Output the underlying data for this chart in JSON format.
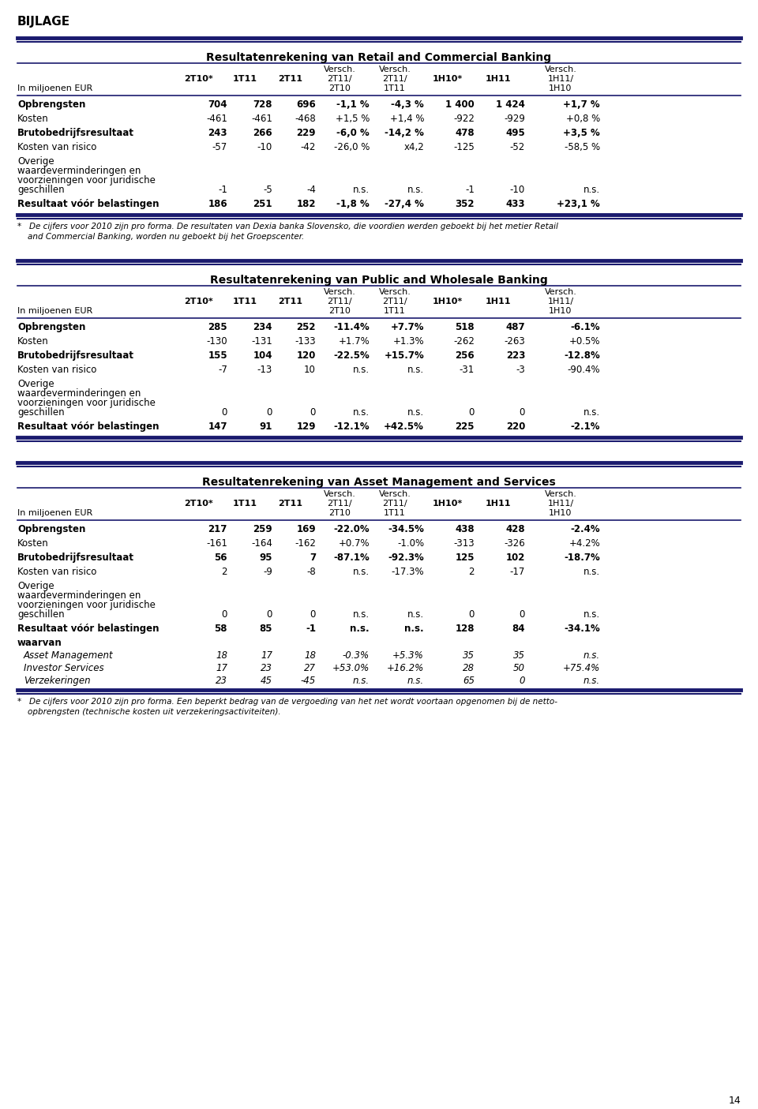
{
  "page_label": "BIJLAGE",
  "page_number": "14",
  "background_color": "#ffffff",
  "text_color": "#000000",
  "dark_blue": "#1a1a6e",
  "tables": [
    {
      "title": "Resultatenrekening van Retail and Commercial Banking",
      "subheader": "In miljoenen EUR",
      "rows": [
        {
          "label": "Opbrengsten",
          "bold": true,
          "values": [
            "704",
            "728",
            "696",
            "-1,1 %",
            "-4,3 %",
            "1 400",
            "1 424",
            "+1,7 %"
          ]
        },
        {
          "label": "Kosten",
          "bold": false,
          "values": [
            "-461",
            "-461",
            "-468",
            "+1,5 %",
            "+1,4 %",
            "-922",
            "-929",
            "+0,8 %"
          ]
        },
        {
          "label": "Brutobedrijfsresultaat",
          "bold": true,
          "values": [
            "243",
            "266",
            "229",
            "-6,0 %",
            "-14,2 %",
            "478",
            "495",
            "+3,5 %"
          ]
        },
        {
          "label": "Kosten van risico",
          "bold": false,
          "values": [
            "-57",
            "-10",
            "-42",
            "-26,0 %",
            "x4,2",
            "-125",
            "-52",
            "-58,5 %"
          ]
        },
        {
          "label": "Overige\nwaardeverminderingen en\nvoorzieningen voor juridische\ngeschillen",
          "bold": false,
          "values": [
            "-1",
            "-5",
            "-4",
            "n.s.",
            "n.s.",
            "-1",
            "-10",
            "n.s."
          ]
        },
        {
          "label": "Resultaat vóór belastingen",
          "bold": true,
          "values": [
            "186",
            "251",
            "182",
            "-1,8 %",
            "-27,4 %",
            "352",
            "433",
            "+23,1 %"
          ]
        }
      ],
      "footnote": "*   De cijfers voor 2010 zijn pro forma. De resultaten van Dexia banka Slovensko, die voordien werden geboekt bij het metier Retail\n    and Commercial Banking, worden nu geboekt bij het Groepscenter."
    },
    {
      "title": "Resultatenrekening van Public and Wholesale Banking",
      "subheader": "In miljoenen EUR",
      "rows": [
        {
          "label": "Opbrengsten",
          "bold": true,
          "values": [
            "285",
            "234",
            "252",
            "-11.4%",
            "+7.7%",
            "518",
            "487",
            "-6.1%"
          ]
        },
        {
          "label": "Kosten",
          "bold": false,
          "values": [
            "-130",
            "-131",
            "-133",
            "+1.7%",
            "+1.3%",
            "-262",
            "-263",
            "+0.5%"
          ]
        },
        {
          "label": "Brutobedrijfsresultaat",
          "bold": true,
          "values": [
            "155",
            "104",
            "120",
            "-22.5%",
            "+15.7%",
            "256",
            "223",
            "-12.8%"
          ]
        },
        {
          "label": "Kosten van risico",
          "bold": false,
          "values": [
            "-7",
            "-13",
            "10",
            "n.s.",
            "n.s.",
            "-31",
            "-3",
            "-90.4%"
          ]
        },
        {
          "label": "Overige\nwaardeverminderingen en\nvoorzieningen voor juridische\ngeschillen",
          "bold": false,
          "values": [
            "0",
            "0",
            "0",
            "n.s.",
            "n.s.",
            "0",
            "0",
            "n.s."
          ]
        },
        {
          "label": "Resultaat vóór belastingen",
          "bold": true,
          "values": [
            "147",
            "91",
            "129",
            "-12.1%",
            "+42.5%",
            "225",
            "220",
            "-2.1%"
          ]
        }
      ],
      "footnote": ""
    },
    {
      "title": "Resultatenrekening van Asset Management and Services",
      "subheader": "In miljoenen EUR",
      "rows": [
        {
          "label": "Opbrengsten",
          "bold": true,
          "values": [
            "217",
            "259",
            "169",
            "-22.0%",
            "-34.5%",
            "438",
            "428",
            "-2.4%"
          ]
        },
        {
          "label": "Kosten",
          "bold": false,
          "values": [
            "-161",
            "-164",
            "-162",
            "+0.7%",
            "-1.0%",
            "-313",
            "-326",
            "+4.2%"
          ]
        },
        {
          "label": "Brutobedrijfsresultaat",
          "bold": true,
          "values": [
            "56",
            "95",
            "7",
            "-87.1%",
            "-92.3%",
            "125",
            "102",
            "-18.7%"
          ]
        },
        {
          "label": "Kosten van risico",
          "bold": false,
          "values": [
            "2",
            "-9",
            "-8",
            "n.s.",
            "-17.3%",
            "2",
            "-17",
            "n.s."
          ]
        },
        {
          "label": "Overige\nwaardeverminderingen en\nvoorzieningen voor juridische\ngeschillen",
          "bold": false,
          "values": [
            "0",
            "0",
            "0",
            "n.s.",
            "n.s.",
            "0",
            "0",
            "n.s."
          ]
        },
        {
          "label": "Resultaat vóór belastingen",
          "bold": true,
          "values": [
            "58",
            "85",
            "-1",
            "n.s.",
            "n.s.",
            "128",
            "84",
            "-34.1%"
          ]
        },
        {
          "label": "waarvan",
          "bold": true,
          "italic": false,
          "values": [
            "",
            "",
            "",
            "",
            "",
            "",
            "",
            ""
          ],
          "subrows": [
            {
              "label": "Asset Management",
              "bold": false,
              "italic": true,
              "values": [
                "18",
                "17",
                "18",
                "-0.3%",
                "+5.3%",
                "35",
                "35",
                "n.s."
              ]
            },
            {
              "label": "Investor Services",
              "bold": false,
              "italic": true,
              "values": [
                "17",
                "23",
                "27",
                "+53.0%",
                "+16.2%",
                "28",
                "50",
                "+75.4%"
              ]
            },
            {
              "label": "Verzekeringen",
              "bold": false,
              "italic": true,
              "values": [
                "23",
                "45",
                "-45",
                "n.s.",
                "n.s.",
                "65",
                "0",
                "n.s."
              ]
            }
          ]
        }
      ],
      "footnote": "*   De cijfers voor 2010 zijn pro forma. Een beperkt bedrag van de vergoeding van het net wordt voortaan opgenomen bij de netto-\n    opbrengsten (technische kosten uit verzekeringsactiviteiten)."
    }
  ],
  "col_header_row1": [
    "",
    "",
    "",
    "",
    "Versch.",
    "Versch.",
    "",
    "",
    "Versch."
  ],
  "col_header_row2": [
    "",
    "2T10*",
    "1T11",
    "2T11",
    "2T11/",
    "2T11/",
    "1H10*",
    "1H11",
    "1H11/"
  ],
  "col_header_row3": [
    "In miljoenen EUR",
    "",
    "",
    "",
    "2T10",
    "1T11",
    "",
    "",
    "1H10"
  ],
  "col_bold_row2": [
    false,
    true,
    true,
    true,
    false,
    false,
    true,
    true,
    false
  ]
}
